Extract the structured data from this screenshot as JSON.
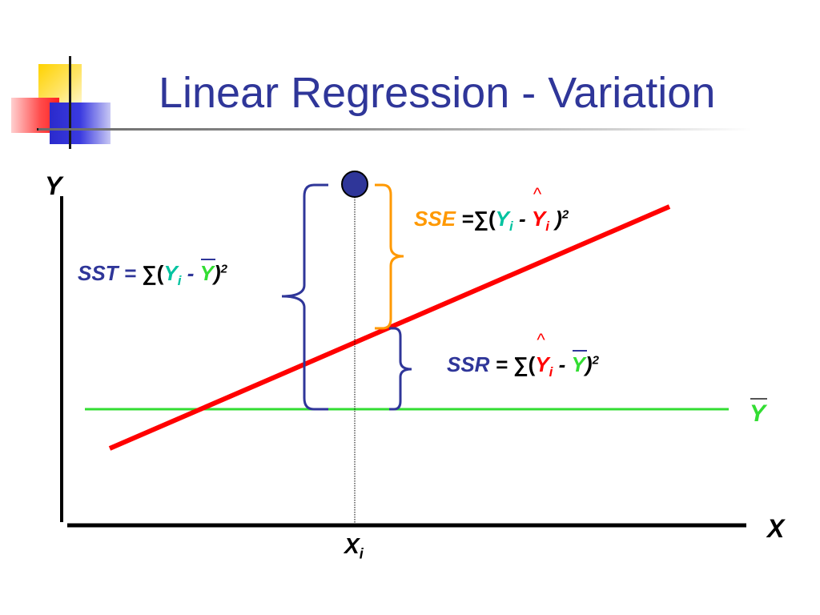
{
  "slide": {
    "title": "Linear Regression - Variation"
  },
  "colors": {
    "title": "#2f3699",
    "regression_line": "#ff0000",
    "mean_line": "#33dd33",
    "sst_brace": "#2f3699",
    "sse_brace": "#ff9900",
    "ssr_brace": "#2f3699",
    "point": "#2f3699"
  },
  "axes": {
    "y_label": "Y",
    "x_label": "X",
    "xi_label": "X",
    "xi_sub": "i",
    "mean_label": "Y"
  },
  "formulas": {
    "sst": {
      "name": "SST",
      "eq": "=",
      "sigma": "∑(",
      "yi": "Y",
      "i": "i",
      "minus": "-",
      "ybar": "Y",
      "close": ")",
      "power": "2"
    },
    "sse": {
      "name": "SSE",
      "eq": "=",
      "sigma": "∑(",
      "yi": "Y",
      "i": "i",
      "minus": "-",
      "yhat": "Y",
      "yhat_i": "i",
      "close": ")",
      "power": "2"
    },
    "ssr": {
      "name": "SSR",
      "eq": "=",
      "sigma": "∑(",
      "yhat": "Y",
      "yhat_i": "i",
      "minus": "-",
      "ybar": "Y",
      "close": ")",
      "power": "2"
    }
  }
}
